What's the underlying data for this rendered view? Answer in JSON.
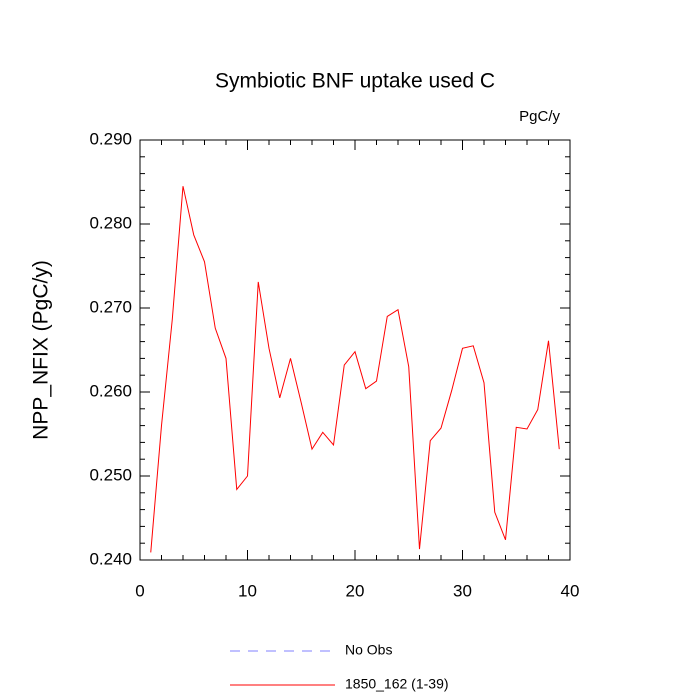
{
  "chart_data": {
    "type": "line",
    "title": "Symbiotic BNF uptake used C",
    "units": "PgC/y",
    "ylabel": "NPP_NFIX  (PgC/y)",
    "x": [
      1,
      2,
      3,
      4,
      5,
      6,
      7,
      8,
      9,
      10,
      11,
      12,
      13,
      14,
      15,
      16,
      17,
      18,
      19,
      20,
      21,
      22,
      23,
      24,
      25,
      26,
      27,
      28,
      29,
      30,
      31,
      32,
      33,
      34,
      35,
      36,
      37,
      38,
      39
    ],
    "series": [
      {
        "name": "No Obs",
        "color": "#8080ff",
        "dashed": true,
        "values": [
          null,
          null,
          null,
          null,
          null,
          null,
          null,
          null,
          null,
          null,
          null,
          null,
          null,
          null,
          null,
          null,
          null,
          null,
          null,
          null,
          null,
          null,
          null,
          null,
          null,
          null,
          null,
          null,
          null,
          null,
          null,
          null,
          null,
          null,
          null,
          null,
          null,
          null,
          null
        ]
      },
      {
        "name": "1850_162 (1-39)",
        "color": "#ff0000",
        "dashed": false,
        "values": [
          0.2409,
          0.256,
          0.2686,
          0.2845,
          0.2787,
          0.2755,
          0.2676,
          0.264,
          0.2484,
          0.25,
          0.2731,
          0.2652,
          0.2593,
          0.264,
          0.2587,
          0.2532,
          0.2552,
          0.2537,
          0.2632,
          0.2648,
          0.2604,
          0.2613,
          0.269,
          0.2698,
          0.263,
          0.2413,
          0.2542,
          0.2557,
          0.2602,
          0.2652,
          0.2655,
          0.2611,
          0.2457,
          0.2424,
          0.2558,
          0.2556,
          0.2579,
          0.2661,
          0.2532
        ]
      }
    ],
    "xlim": [
      0,
      40
    ],
    "xticks": [
      0,
      10,
      20,
      30,
      40
    ],
    "ylim": [
      0.24,
      0.29
    ],
    "yticks": [
      {
        "value": 0.24,
        "label": "0.240"
      },
      {
        "value": 0.25,
        "label": "0.250"
      },
      {
        "value": 0.26,
        "label": "0.260"
      },
      {
        "value": 0.27,
        "label": "0.270"
      },
      {
        "value": 0.28,
        "label": "0.280"
      },
      {
        "value": 0.29,
        "label": "0.290"
      }
    ],
    "grid": false,
    "legend": "bottom"
  }
}
